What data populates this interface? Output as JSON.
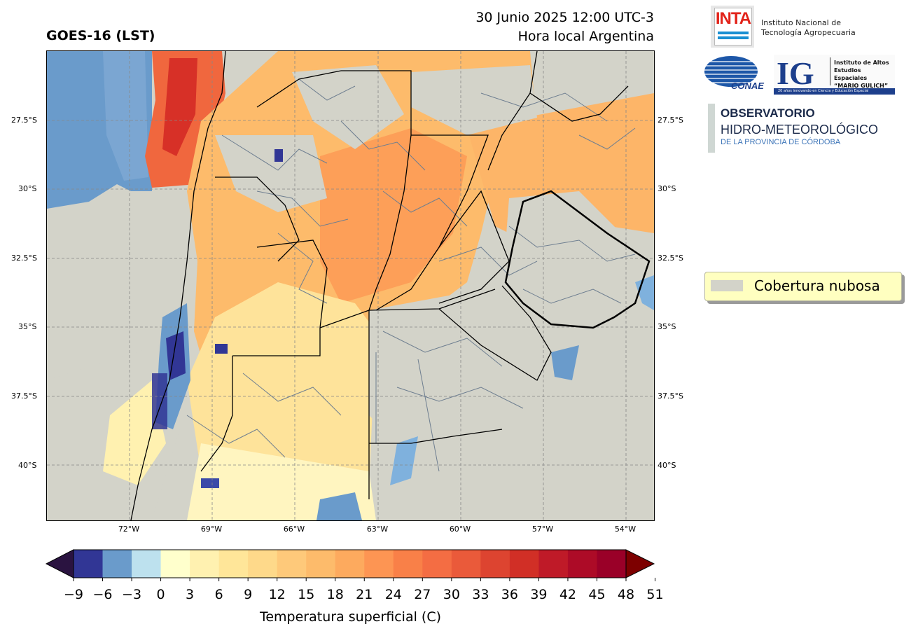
{
  "header": {
    "title": "GOES-16 (LST)",
    "date_line": "30 Junio 2025 12:00 UTC-3",
    "local_line": "Hora local Argentina"
  },
  "map": {
    "lat_labels": [
      "27.5°S",
      "30°S",
      "32.5°S",
      "35°S",
      "37.5°S",
      "40°S"
    ],
    "lon_labels": [
      "72°W",
      "69°W",
      "66°W",
      "63°W",
      "60°W",
      "57°W",
      "54°W"
    ]
  },
  "colorbar": {
    "label": "Temperatura superficial (C)",
    "ticks": [
      "−9",
      "−6",
      "−3",
      "0",
      "3",
      "6",
      "9",
      "12",
      "15",
      "18",
      "21",
      "24",
      "27",
      "30",
      "33",
      "36",
      "39",
      "42",
      "45",
      "48",
      "51"
    ],
    "colors": [
      "#313695",
      "#6a9bcb",
      "#bde1ee",
      "#ffffcc",
      "#fff1b0",
      "#ffe699",
      "#fed98a",
      "#fec97a",
      "#fdbb6b",
      "#fdaa5e",
      "#fd9553",
      "#f98048",
      "#f46d43",
      "#ea5a3a",
      "#dd4430",
      "#d12f26",
      "#bf1a28",
      "#ad0b27",
      "#9a0028"
    ],
    "under_color": "#2a1340",
    "over_color": "#7d0000"
  },
  "legend": {
    "label": "Cobertura nubosa",
    "swatch_color": "#d3d3c9"
  },
  "logos": {
    "inta_word": "INTA",
    "inta_line1": "Instituto Nacional de",
    "inta_line2": "Tecnología Agropecuaria",
    "conae_word": "CONAE",
    "ig_letters": "IG",
    "ig_line1": "Instituto de Altos",
    "ig_line2": "Estudios Espaciales",
    "ig_line3": "“MARIO GULICH”",
    "ig_bar_text": "20 años innovando en Ciencia y Educación Espacial",
    "obs_line1": "OBSERVATORIO",
    "obs_line2": "HIDRO-METEOROLÓGICO",
    "obs_line3": "DE LA PROVINCIA DE CÓRDOBA"
  }
}
